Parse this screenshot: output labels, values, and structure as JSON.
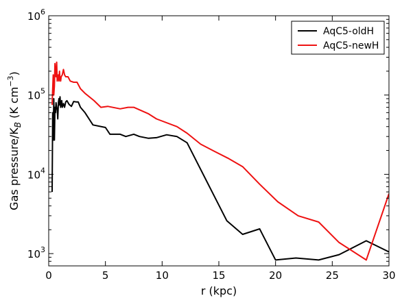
{
  "chart_data": {
    "type": "line",
    "title": "",
    "xlabel": "r (kpc)",
    "ylabel_main": "Gas pressure/K",
    "ylabel_sub": "B",
    "ylabel_units": "  (K cm",
    "ylabel_exp": "−3",
    "ylabel_close": ")",
    "xlim": [
      0,
      30
    ],
    "ylim": [
      700,
      1000000
    ],
    "yscale": "log",
    "grid": false,
    "legend_position": "top-right",
    "x_ticks": [
      {
        "value": 0,
        "label": "0"
      },
      {
        "value": 5,
        "label": "5"
      },
      {
        "value": 10,
        "label": "10"
      },
      {
        "value": 15,
        "label": "15"
      },
      {
        "value": 20,
        "label": "20"
      },
      {
        "value": 25,
        "label": "25"
      },
      {
        "value": 30,
        "label": "30"
      }
    ],
    "y_ticks": [
      {
        "value": 1000,
        "base": "10",
        "exp": "3"
      },
      {
        "value": 10000,
        "base": "10",
        "exp": "4"
      },
      {
        "value": 100000,
        "base": "10",
        "exp": "5"
      },
      {
        "value": 1000000,
        "base": "10",
        "exp": "6"
      }
    ],
    "series": [
      {
        "name": "AqC5-oldH",
        "color": "#000000",
        "x": [
          0.3,
          0.35,
          0.4,
          0.45,
          0.5,
          0.55,
          0.6,
          0.65,
          0.7,
          0.75,
          0.8,
          0.85,
          0.9,
          0.95,
          1.0,
          1.05,
          1.1,
          1.15,
          1.2,
          1.3,
          1.4,
          1.5,
          1.6,
          1.8,
          2.0,
          2.2,
          2.4,
          2.6,
          2.8,
          3.2,
          3.9,
          5.0,
          5.4,
          6.3,
          6.8,
          7.5,
          8.0,
          8.8,
          9.5,
          10.4,
          11.3,
          12.2,
          15.7,
          17.1,
          18.6,
          20.0,
          21.8,
          23.8,
          25.6,
          28.0,
          30.0
        ],
        "y": [
          6000,
          60000,
          27000,
          90000,
          27000,
          70000,
          60000,
          80000,
          70000,
          65000,
          50000,
          80000,
          90000,
          75000,
          95000,
          70000,
          80000,
          85000,
          70000,
          78000,
          70000,
          82000,
          85000,
          76000,
          72000,
          83000,
          82000,
          82000,
          70000,
          60000,
          42000,
          39000,
          32000,
          32000,
          30000,
          32000,
          30000,
          28500,
          29000,
          31500,
          30000,
          25000,
          2600,
          1750,
          2050,
          830,
          880,
          830,
          970,
          1450,
          1050
        ]
      },
      {
        "name": "AqC5-newH",
        "color": "#ee1111",
        "x": [
          0.3,
          0.35,
          0.4,
          0.45,
          0.5,
          0.55,
          0.6,
          0.65,
          0.7,
          0.75,
          0.8,
          0.85,
          0.9,
          0.95,
          1.0,
          1.05,
          1.1,
          1.2,
          1.3,
          1.4,
          1.5,
          1.7,
          1.9,
          2.2,
          2.5,
          2.8,
          3.2,
          4.0,
          4.6,
          5.2,
          6.3,
          7.0,
          7.5,
          8.8,
          9.5,
          11.3,
          12.2,
          13.4,
          14.6,
          15.8,
          17.1,
          18.6,
          20.2,
          22.0,
          23.8,
          25.6,
          28.0,
          30.0
        ],
        "y": [
          75000,
          120000,
          180000,
          100000,
          130000,
          250000,
          180000,
          170000,
          260000,
          150000,
          160000,
          180000,
          150000,
          200000,
          160000,
          150000,
          170000,
          180000,
          210000,
          180000,
          170000,
          170000,
          150000,
          145000,
          145000,
          120000,
          105000,
          85000,
          70000,
          72000,
          67000,
          70000,
          70000,
          58000,
          50000,
          40000,
          33000,
          24000,
          19500,
          16000,
          12500,
          7500,
          4500,
          3000,
          2500,
          1380,
          830,
          5700
        ]
      }
    ]
  }
}
